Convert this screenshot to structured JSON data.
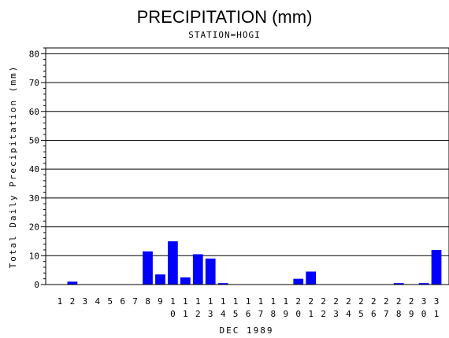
{
  "chart_data": {
    "type": "bar",
    "title": "PRECIPITATION (mm)",
    "subtitle": "STATION=HOGI",
    "xlabel": "DEC 1989",
    "ylabel": "Total Daily Precipitation (mm)",
    "categories": [
      "1",
      "2",
      "3",
      "4",
      "5",
      "6",
      "7",
      "8",
      "9",
      "10",
      "11",
      "12",
      "13",
      "14",
      "15",
      "16",
      "17",
      "18",
      "19",
      "20",
      "21",
      "22",
      "23",
      "24",
      "25",
      "26",
      "27",
      "28",
      "29",
      "30",
      "31"
    ],
    "values": [
      0,
      1.0,
      0,
      0,
      0,
      0,
      0,
      11.5,
      3.5,
      15.0,
      2.5,
      10.5,
      9.0,
      0.5,
      0,
      0,
      0,
      0,
      0,
      2.0,
      4.5,
      0,
      0,
      0,
      0,
      0,
      0,
      0.5,
      0,
      0.5,
      12.0
    ],
    "ylim": [
      0,
      82
    ],
    "yticks": [
      0,
      10,
      20,
      30,
      40,
      50,
      60,
      70,
      80
    ],
    "grid": true,
    "bar_color": "#0000ff"
  }
}
